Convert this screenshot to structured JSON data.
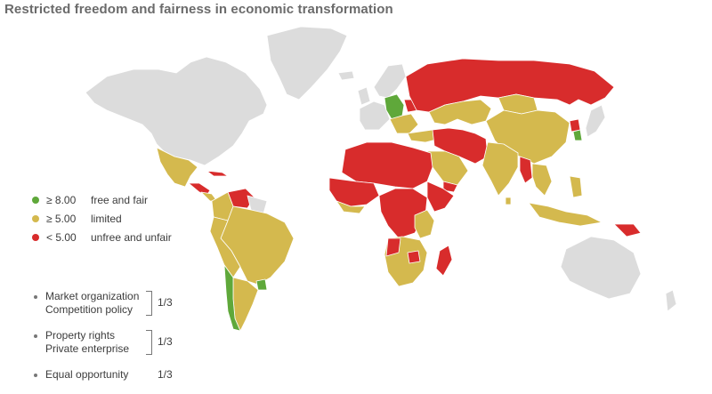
{
  "title": "Restricted freedom and fairness in economic transformation",
  "colors": {
    "green": "#5fa83a",
    "yellow": "#d4b94e",
    "red": "#d82c2c",
    "gray": "#dcdcdc",
    "border": "#ffffff"
  },
  "legend": [
    {
      "value": "≥ 8.00",
      "label": "free and fair",
      "color": "#5fa83a"
    },
    {
      "value": "≥ 5.00",
      "label": "limited",
      "color": "#d4b94e"
    },
    {
      "value": "< 5.00",
      "label": "unfree and unfair",
      "color": "#d82c2c"
    }
  ],
  "weights": [
    {
      "items": [
        "Market organization",
        "Competition policy"
      ],
      "weight": "1/3"
    },
    {
      "items": [
        "Property rights",
        "Private enterprise"
      ],
      "weight": "1/3"
    },
    {
      "items": [
        "Equal opportunity"
      ],
      "weight": "1/3"
    }
  ]
}
